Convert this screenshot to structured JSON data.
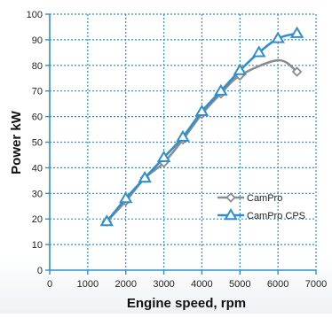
{
  "chart_data": {
    "type": "line",
    "title": "",
    "xlabel": "Engine speed, rpm",
    "ylabel": "Power kW",
    "xlim": [
      0,
      7000
    ],
    "ylim": [
      0,
      100
    ],
    "x_ticks": [
      0,
      1000,
      2000,
      3000,
      4000,
      5000,
      6000,
      7000
    ],
    "y_ticks": [
      0,
      10,
      20,
      30,
      40,
      50,
      60,
      70,
      80,
      90,
      100
    ],
    "grid": true,
    "legend_position": "right-center",
    "series": [
      {
        "name": "CamPro",
        "color": "#8c8c8c",
        "marker": "diamond",
        "x": [
          1500,
          2000,
          2500,
          3000,
          3500,
          4000,
          4500,
          5000,
          6000,
          6500
        ],
        "y": [
          19,
          27,
          36,
          42,
          51,
          61,
          69,
          76,
          82,
          77.5
        ],
        "marker_x": [
          1500,
          2000,
          2500,
          3000,
          3500,
          4000,
          4500,
          5000,
          6500
        ]
      },
      {
        "name": "CamPro CPS",
        "color": "#2f8fcf",
        "marker": "triangle",
        "x": [
          1500,
          2000,
          2500,
          3000,
          3500,
          4000,
          4500,
          5000,
          5500,
          6000,
          6500
        ],
        "y": [
          19,
          28,
          36,
          44,
          52,
          62,
          70,
          78,
          85,
          90.5,
          92.5
        ]
      }
    ]
  }
}
